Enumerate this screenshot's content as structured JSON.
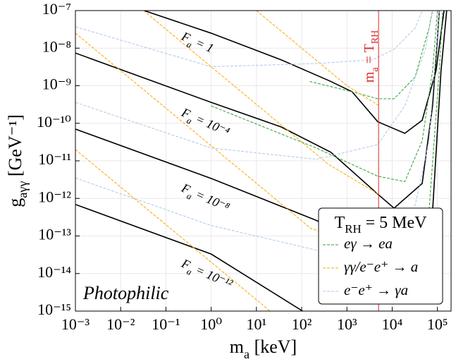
{
  "chart_data": {
    "type": "line",
    "xlog": true,
    "ylog": true,
    "grid": true,
    "xlabel": [
      "m",
      "a",
      " [keV]"
    ],
    "ylabel": [
      "g",
      "aγγ",
      " [GeV⁻¹]"
    ],
    "xlim": [
      0.001,
      200000
    ],
    "ylim": [
      1e-15,
      1e-07
    ],
    "xticks": [
      {
        "value": 0.001,
        "label": "10⁻³"
      },
      {
        "value": 0.01,
        "label": "10⁻²"
      },
      {
        "value": 0.1,
        "label": "10⁻¹"
      },
      {
        "value": 1,
        "label": "10⁰"
      },
      {
        "value": 10,
        "label": "10¹"
      },
      {
        "value": 100,
        "label": "10²"
      },
      {
        "value": 1000,
        "label": "10³"
      },
      {
        "value": 10000,
        "label": "10⁴"
      },
      {
        "value": 100000,
        "label": "10⁵"
      }
    ],
    "yticks": [
      {
        "value": 1e-15,
        "label": "10⁻¹⁵"
      },
      {
        "value": 1e-14,
        "label": "10⁻¹⁴"
      },
      {
        "value": 1e-13,
        "label": "10⁻¹³"
      },
      {
        "value": 1e-12,
        "label": "10⁻¹²"
      },
      {
        "value": 1e-11,
        "label": "10⁻¹¹"
      },
      {
        "value": 1e-10,
        "label": "10⁻¹⁰"
      },
      {
        "value": 1e-09,
        "label": "10⁻⁹"
      },
      {
        "value": 1e-08,
        "label": "10⁻⁸"
      },
      {
        "value": 1e-07,
        "label": "10⁻⁷"
      }
    ],
    "annotation": "Photophilic",
    "vline": {
      "x": 5000,
      "color": "#d62728",
      "label": [
        "m",
        "a",
        " = T",
        "RH"
      ]
    },
    "legend": {
      "position": "lower right",
      "title": [
        "T",
        "RH",
        " = 5 MeV"
      ]
    },
    "series": [
      {
        "label": [
          "F",
          "a",
          " = 1"
        ],
        "color": "#000000",
        "dashed": false,
        "lines": [
          {
            "x": [
              0.033,
              1,
              35,
              440,
              1300,
              4800,
              19000,
              46000,
              93000,
              140000
            ],
            "values": [
              1e-07,
              2.5e-08,
              4.9e-09,
              1.3e-09,
              6.9e-10,
              1.1e-10,
              5.4e-11,
              1.2e-10,
              2.5e-09,
              1e-07
            ]
          }
        ]
      },
      {
        "label": [
          "F",
          "a",
          " = 10⁻⁴"
        ],
        "color": "#000000",
        "dashed": false,
        "lines": [
          {
            "x": [
              0.001,
              1,
              35,
              440,
              4800,
              11000,
              46000,
              78000,
              110000
            ],
            "values": [
              7.4e-09,
              3.6e-10,
              8e-11,
              1.7e-11,
              1.3e-12,
              5.5e-13,
              2.5e-12,
              2.9e-10,
              1e-07
            ]
          }
        ]
      },
      {
        "label": [
          "F",
          "a",
          " = 10⁻⁸"
        ],
        "color": "#000000",
        "dashed": false,
        "lines": [
          {
            "x": [
              0.001,
              1,
              210,
              4800,
              32000,
              78000,
              120000,
              160000
            ],
            "values": [
              7e-11,
              3.4e-12,
              2.6e-13,
              4.2e-14,
              2e-14,
              4.5e-13,
              2.5e-09,
              1e-07
            ]
          }
        ]
      },
      {
        "label": [
          "F",
          "a",
          " = 10⁻¹²"
        ],
        "color": "#000000",
        "dashed": false,
        "lines": [
          {
            "x": [
              0.001,
              1,
              105
            ],
            "values": [
              6.9e-13,
              3.3e-14,
              1e-15
            ]
          }
        ]
      },
      {
        "name": "eγ → ea",
        "color": "#2ca02c",
        "dashed": true,
        "lines": [
          {
            "x": [
              150,
              1300,
              4800,
              11000,
              32000,
              65000,
              78000
            ],
            "values": [
              1.3e-09,
              6.9e-10,
              4.5e-10,
              4.5e-10,
              1.7e-09,
              3.4e-08,
              1e-07
            ]
          },
          {
            "x": [
              1,
              210,
              4800,
              19000,
              46000,
              78000,
              100000
            ],
            "values": [
              2.9e-10,
              2.2e-11,
              3.9e-12,
              2.8e-12,
              3.4e-11,
              2.5e-09,
              1e-07
            ]
          },
          {
            "x": [
              1300,
              4800,
              22000,
              65000,
              110000,
              130000
            ],
            "values": [
              7.9e-14,
              3.3e-14,
              9e-15,
              4.5e-13,
              2.5e-09,
              1e-07
            ]
          }
        ]
      },
      {
        "name": "γγ/e⁻e⁺ → a",
        "color": "#ffa500",
        "dashed": true,
        "lines": [
          {
            "x": [
              0.001,
              158,
              4800
            ],
            "values": [
              2.5e-08,
              1.6e-13,
              4.2e-14
            ]
          },
          {
            "x": [
              0.032,
              400,
              5000
            ],
            "values": [
              1e-07,
              7.9e-12,
              1.3e-12
            ]
          },
          {
            "x": [
              10,
              1000,
              5000
            ],
            "values": [
              1e-07,
              1e-09,
              3e-10
            ]
          },
          {
            "x": [
              0.001,
              20
            ],
            "values": [
              2e-11,
              1e-15
            ]
          }
        ]
      },
      {
        "name": "e⁻e⁺ → γa",
        "color": "#aec7e8",
        "dashed": true,
        "lines": [
          {
            "x": [
              0.001,
              1,
              210,
              3700,
              11000,
              32000,
              46000
            ],
            "values": [
              3.7e-08,
              3.2e-09,
              3.9e-09,
              4.9e-09,
              9.3e-09,
              3.4e-08,
              1e-07
            ]
          },
          {
            "x": [
              0.001,
              1,
              210,
              4800,
              19000,
              54000,
              78000
            ],
            "values": [
              3.6e-10,
              2.2e-11,
              1.1e-11,
              2.7e-11,
              2.9e-10,
              9.3e-09,
              1e-07
            ]
          },
          {
            "x": [
              0.001,
              1,
              210,
              4800,
              22000,
              65000,
              110000
            ],
            "values": [
              3.5e-12,
              1.9e-13,
              4.2e-14,
              3.3e-14,
              7.9e-14,
              3.4e-11,
              1e-07
            ]
          }
        ]
      }
    ]
  }
}
